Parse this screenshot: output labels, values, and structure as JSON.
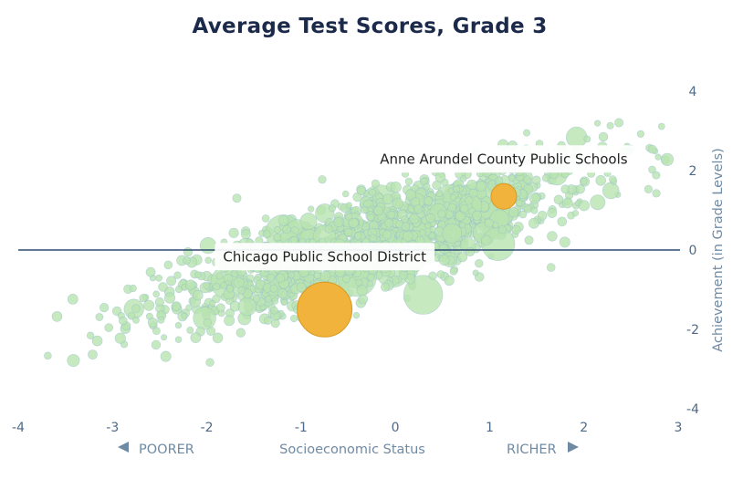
{
  "chart_data": {
    "type": "scatter",
    "title": "Average Test Scores, Grade 3",
    "xlabel": "Socioeconomic Status",
    "ylabel": "Achievement (in Grade Levels)",
    "xlim": [
      -4,
      3
    ],
    "ylim": [
      -4,
      4
    ],
    "x_ticks": [
      "-4",
      "-3",
      "-2",
      "-1",
      "0",
      "1",
      "2",
      "3"
    ],
    "y_ticks": [
      "4",
      "2",
      "0",
      "-2",
      "-4"
    ],
    "x_direction_labels": {
      "left": "POORER",
      "right": "RICHER"
    },
    "reference_line_y": 0,
    "background_points": {
      "description_trend": "positive",
      "color": "#b9e4b0",
      "edge_color": "#8fb8cf"
    },
    "highlighted": [
      {
        "name": "Anne Arundel County Public Schools",
        "x": 1.15,
        "y": 1.35,
        "size": "small"
      },
      {
        "name": "Chicago Public School District",
        "x": -0.75,
        "y": -1.5,
        "size": "large"
      }
    ],
    "highlight_color": "#f2b33d",
    "line_color": "#2e4d72"
  }
}
